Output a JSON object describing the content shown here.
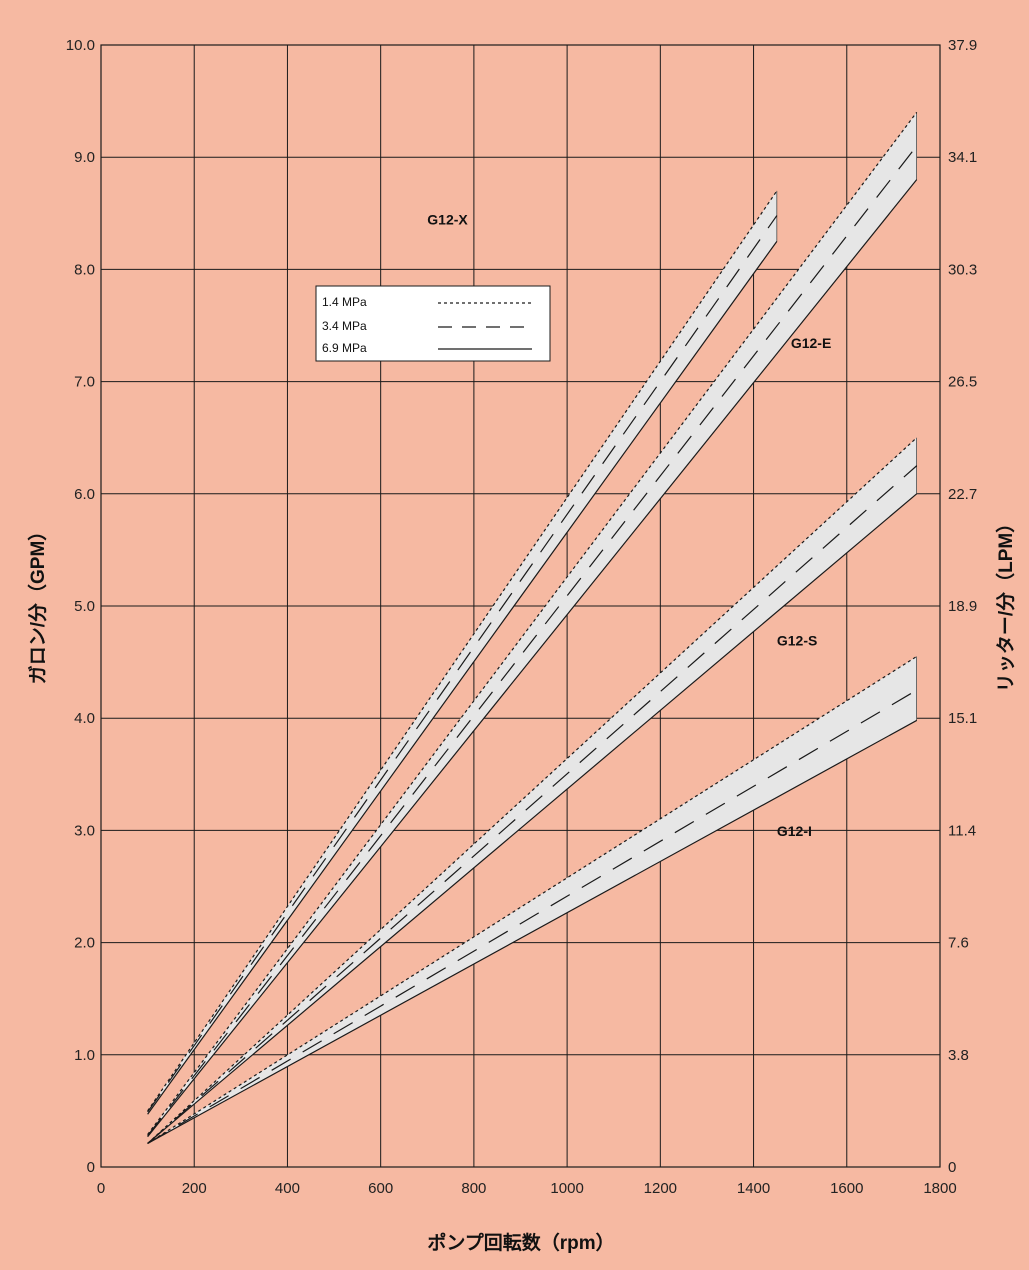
{
  "colors": {
    "background": "#f6b9a2",
    "band_fill": "#e6e6e6",
    "grid": "#1a1a1a",
    "line": "#1a1a1a"
  },
  "chart_data": {
    "type": "line",
    "title": "",
    "xlabel": "ポンプ回転数（rpm）",
    "ylabel": "ガロン/分（GPM）",
    "ylabel_right": "リッター/分（LPM）",
    "xlim": [
      0,
      1800
    ],
    "ylim": [
      0,
      10
    ],
    "x_ticks": [
      0,
      200,
      400,
      600,
      800,
      1000,
      1200,
      1400,
      1600,
      1800
    ],
    "x_tick_labels": [
      "0",
      "200",
      "400",
      "600",
      "800",
      "1000",
      "1200",
      "1400",
      "1600",
      "1800"
    ],
    "y_ticks": [
      0,
      1,
      2,
      3,
      4,
      5,
      6,
      7,
      8,
      9,
      10
    ],
    "y_tick_labels": [
      "0",
      "1.0",
      "2.0",
      "3.0",
      "4.0",
      "5.0",
      "6.0",
      "7.0",
      "8.0",
      "9.0",
      "10.0"
    ],
    "y_right_tick_labels": [
      "0",
      "3.8",
      "7.6",
      "11.4",
      "15.1",
      "18.9",
      "22.7",
      "26.5",
      "30.3",
      "34.1",
      "37.9"
    ],
    "grid": true,
    "legend": {
      "position": "upper-left",
      "entries": [
        {
          "label": "1.4 MPa",
          "style": "dotted"
        },
        {
          "label": "3.4 MPa",
          "style": "dashed"
        },
        {
          "label": "6.9 MPa",
          "style": "solid"
        }
      ]
    },
    "pumps": [
      {
        "name": "G12-X",
        "x": [
          100,
          1450
        ],
        "pressure_1_4": [
          0.5,
          8.7
        ],
        "pressure_3_4": [
          0.49,
          8.48
        ],
        "pressure_6_9": [
          0.47,
          8.25
        ],
        "label_x": 700,
        "label_y": 8.4
      },
      {
        "name": "G12-E",
        "x": [
          100,
          1750
        ],
        "pressure_1_4": [
          0.29,
          9.4
        ],
        "pressure_3_4": [
          0.28,
          9.1
        ],
        "pressure_6_9": [
          0.27,
          8.8
        ],
        "label_x": 1480,
        "label_y": 7.3
      },
      {
        "name": "G12-S",
        "x": [
          100,
          1750
        ],
        "pressure_1_4": [
          0.21,
          6.5
        ],
        "pressure_3_4": [
          0.21,
          6.25
        ],
        "pressure_6_9": [
          0.21,
          6.0
        ],
        "label_x": 1450,
        "label_y": 4.65
      },
      {
        "name": "G12-I",
        "x": [
          100,
          1750
        ],
        "pressure_1_4": [
          0.21,
          4.55
        ],
        "pressure_3_4": [
          0.21,
          4.25
        ],
        "pressure_6_9": [
          0.21,
          3.98
        ],
        "label_x": 1450,
        "label_y": 2.95
      }
    ]
  }
}
